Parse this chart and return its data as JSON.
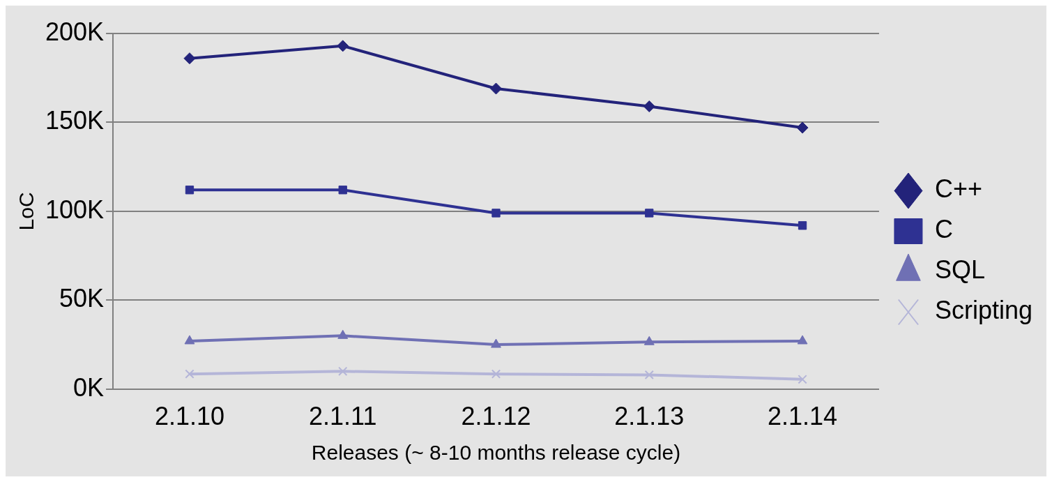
{
  "chart_data": {
    "type": "line",
    "xlabel": "Releases (~ 8-10 months release cycle)",
    "ylabel": "LoC",
    "categories": [
      "2.1.10",
      "2.1.11",
      "2.1.12",
      "2.1.13",
      "2.1.14"
    ],
    "series": [
      {
        "name": "C++",
        "color": "#23237a",
        "marker": "diamond",
        "values": [
          186000,
          193000,
          169000,
          159000,
          147000
        ]
      },
      {
        "name": "C",
        "color": "#2e3192",
        "marker": "square",
        "values": [
          112000,
          112000,
          99000,
          99000,
          92000
        ]
      },
      {
        "name": "SQL",
        "color": "#6f70b4",
        "marker": "triangle",
        "values": [
          27000,
          30000,
          25000,
          26500,
          27000
        ]
      },
      {
        "name": "Scripting",
        "color": "#b4b5d8",
        "marker": "cross",
        "values": [
          8500,
          10000,
          8500,
          8000,
          5500
        ]
      }
    ],
    "ylim": [
      0,
      200000
    ],
    "yticks": [
      {
        "value": 0,
        "label": "0K"
      },
      {
        "value": 50000,
        "label": "50K"
      },
      {
        "value": 100000,
        "label": "100K"
      },
      {
        "value": 150000,
        "label": "150K"
      },
      {
        "value": 200000,
        "label": "200K"
      }
    ],
    "grid": "y",
    "legend": "right"
  }
}
